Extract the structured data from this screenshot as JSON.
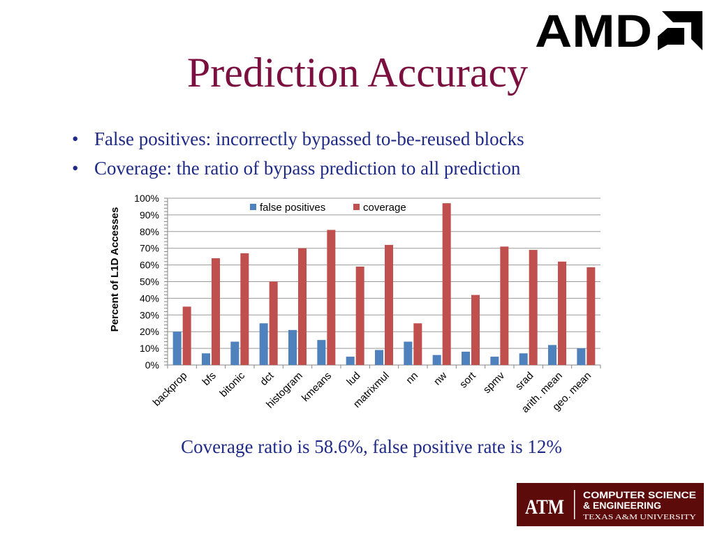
{
  "slide": {
    "title": "Prediction Accuracy",
    "bullets": [
      "False positives: incorrectly bypassed to-be-reused blocks",
      "Coverage: the ratio of bypass prediction to all prediction"
    ],
    "bullet_symbol": "•",
    "summary": "Coverage ratio is 58.6%, false positive rate is 12%"
  },
  "logos": {
    "amd": {
      "text": "AMD",
      "color": "#000000"
    },
    "tamu": {
      "line1": "COMPUTER SCIENCE",
      "line2": "& ENGINEERING",
      "line3": "TEXAS A&M UNIVERSITY",
      "mark": "ATM",
      "background": "#5c0a0a"
    }
  },
  "chart_data": {
    "type": "bar",
    "ylabel": "Percent of L1D Accesses",
    "ylim": [
      0,
      100
    ],
    "y_ticks": [
      "0%",
      "10%",
      "20%",
      "30%",
      "40%",
      "50%",
      "60%",
      "70%",
      "80%",
      "90%",
      "100%"
    ],
    "grid": true,
    "legend_position": "top-center",
    "categories": [
      "backprop",
      "bfs",
      "bitonic",
      "dct",
      "histogram",
      "kmeans",
      "lud",
      "matrixmul",
      "nn",
      "nw",
      "sort",
      "spmv",
      "srad",
      "arith. mean",
      "geo. mean"
    ],
    "series": [
      {
        "name": "false positives",
        "color": "#4f81bd",
        "values": [
          20,
          7,
          14,
          25,
          21,
          15,
          5,
          9,
          14,
          6,
          8,
          5,
          7,
          12,
          10
        ]
      },
      {
        "name": "coverage",
        "color": "#c0504d",
        "values": [
          35,
          64,
          67,
          50,
          70,
          81,
          59,
          72,
          25,
          97,
          42,
          71,
          69,
          62,
          58.6
        ]
      }
    ]
  }
}
